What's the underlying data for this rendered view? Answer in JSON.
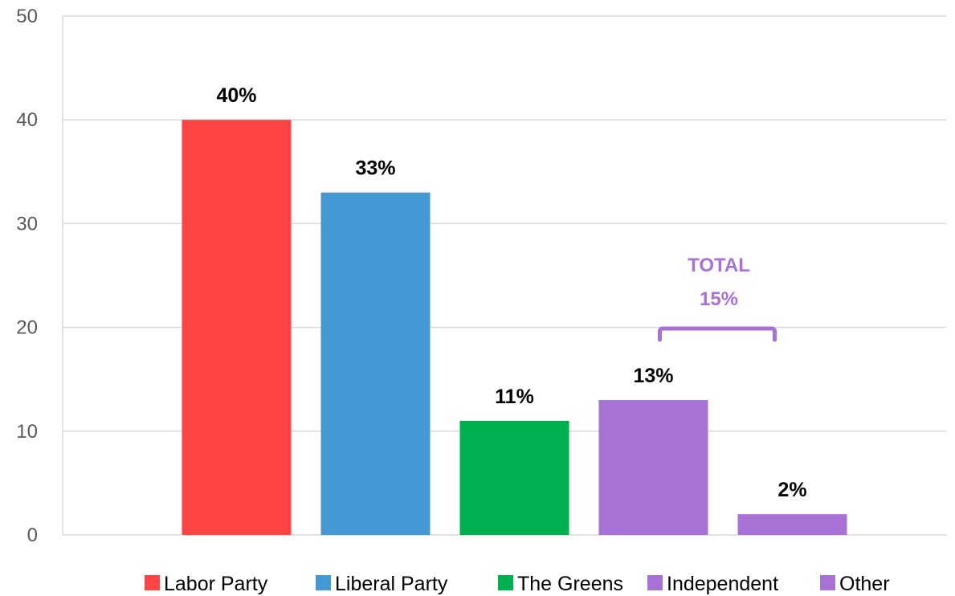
{
  "chart_data": {
    "type": "bar",
    "categories": [
      "Labor Party",
      "Liberal Party",
      "The Greens",
      "Independent",
      "Other"
    ],
    "values": [
      40,
      33,
      11,
      13,
      2
    ],
    "data_labels": [
      "40%",
      "33%",
      "11%",
      "13%",
      "2%"
    ],
    "colors": [
      "#ff4444",
      "#4499d4",
      "#00b050",
      "#a771d6",
      "#a771d6"
    ],
    "ylim": [
      0,
      50
    ],
    "yticks": [
      "0",
      "10",
      "20",
      "30",
      "40",
      "50"
    ],
    "grid": true,
    "legend": "bottom",
    "annotation": {
      "line1": "TOTAL",
      "line2": "15%",
      "color": "#a771d6",
      "spans": [
        "Independent",
        "Other"
      ]
    },
    "xlabel": "",
    "ylabel": "",
    "title": ""
  }
}
